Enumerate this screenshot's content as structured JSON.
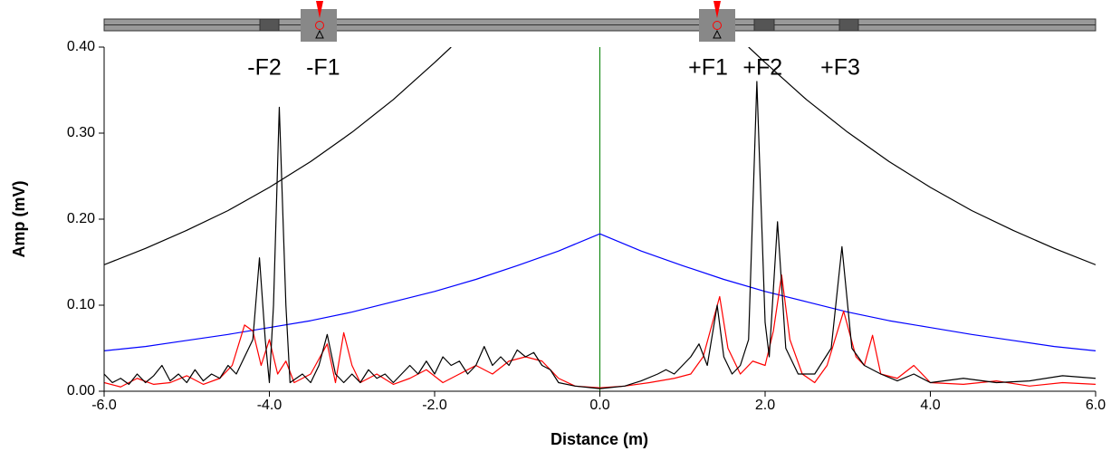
{
  "chart_data": {
    "type": "line",
    "xlabel": "Distance (m)",
    "ylabel": "Amp (mV)",
    "xlim": [
      -6,
      6
    ],
    "ylim": [
      0,
      0.4
    ],
    "xticks": [
      {
        "value": -6,
        "label": "-6.0"
      },
      {
        "value": -4,
        "label": "-4.0"
      },
      {
        "value": -2,
        "label": "-2.0"
      },
      {
        "value": 0,
        "label": "0.0"
      },
      {
        "value": 2,
        "label": "2.0"
      },
      {
        "value": 4,
        "label": "4.0"
      },
      {
        "value": 6,
        "label": "6.0"
      }
    ],
    "yticks": [
      {
        "value": 0,
        "label": "0.00"
      },
      {
        "value": 0.1,
        "label": "0.10"
      },
      {
        "value": 0.2,
        "label": "0.20"
      },
      {
        "value": 0.3,
        "label": "0.30"
      },
      {
        "value": 0.4,
        "label": "0.40"
      }
    ],
    "vlines": [
      {
        "x": 0,
        "color": "#008000"
      }
    ],
    "annotations": [
      {
        "text": "-F2",
        "x": -4.06,
        "y": 0.375
      },
      {
        "text": "-F1",
        "x": -3.35,
        "y": 0.375
      },
      {
        "text": "+F1",
        "x": 1.31,
        "y": 0.375
      },
      {
        "text": "+F2",
        "x": 1.97,
        "y": 0.375
      },
      {
        "text": "+F3",
        "x": 2.91,
        "y": 0.375
      }
    ],
    "series": [
      {
        "color": "#000000",
        "x": [
          -6,
          -5.5,
          -5,
          -4.5,
          -4,
          -3.5,
          -3,
          -2.5,
          -2,
          -1.8,
          0,
          1.8,
          2,
          2.5,
          3,
          3.5,
          4,
          4.5,
          5,
          5.5,
          6
        ],
        "values": [
          0.147,
          0.166,
          0.187,
          0.21,
          0.237,
          0.267,
          0.301,
          0.339,
          0.382,
          0.4,
          null,
          0.4,
          0.382,
          0.339,
          0.301,
          0.267,
          0.237,
          0.21,
          0.187,
          0.166,
          0.147
        ]
      },
      {
        "color": "#0000ff",
        "x": [
          -6,
          -5.5,
          -5,
          -4.5,
          -4,
          -3.5,
          -3,
          -2.5,
          -2,
          -1.5,
          -1,
          -0.5,
          0,
          0.5,
          1,
          1.5,
          2,
          2.5,
          3,
          3.5,
          4,
          4.5,
          5,
          5.5,
          6
        ],
        "values": [
          0.047,
          0.052,
          0.059,
          0.066,
          0.074,
          0.082,
          0.092,
          0.104,
          0.116,
          0.13,
          0.146,
          0.163,
          0.183,
          0.163,
          0.146,
          0.13,
          0.116,
          0.104,
          0.092,
          0.082,
          0.074,
          0.066,
          0.059,
          0.052,
          0.047
        ]
      },
      {
        "color": "#ff0000",
        "x": [
          -6.0,
          -5.8,
          -5.6,
          -5.4,
          -5.2,
          -5.0,
          -4.8,
          -4.6,
          -4.45,
          -4.3,
          -4.2,
          -4.1,
          -4.0,
          -3.9,
          -3.8,
          -3.7,
          -3.5,
          -3.3,
          -3.2,
          -3.1,
          -3.0,
          -2.9,
          -2.7,
          -2.5,
          -2.3,
          -2.1,
          -1.9,
          -1.7,
          -1.5,
          -1.3,
          -1.1,
          -0.9,
          -0.7,
          -0.5,
          -0.3,
          0,
          0.3,
          0.6,
          0.9,
          1.1,
          1.25,
          1.45,
          1.55,
          1.7,
          1.85,
          2.0,
          2.1,
          2.2,
          2.3,
          2.45,
          2.6,
          2.75,
          2.95,
          3.1,
          3.2,
          3.3,
          3.4,
          3.6,
          3.8,
          4.0,
          4.4,
          4.8,
          5.2,
          5.6,
          6.0
        ],
        "values": [
          0.01,
          0.005,
          0.015,
          0.008,
          0.01,
          0.018,
          0.008,
          0.015,
          0.03,
          0.077,
          0.07,
          0.03,
          0.06,
          0.02,
          0.035,
          0.01,
          0.02,
          0.055,
          0.01,
          0.068,
          0.03,
          0.01,
          0.02,
          0.008,
          0.015,
          0.025,
          0.01,
          0.02,
          0.03,
          0.02,
          0.035,
          0.04,
          0.035,
          0.015,
          0.006,
          0.004,
          0.006,
          0.01,
          0.015,
          0.02,
          0.04,
          0.11,
          0.05,
          0.02,
          0.035,
          0.03,
          0.07,
          0.135,
          0.06,
          0.02,
          0.01,
          0.03,
          0.093,
          0.04,
          0.03,
          0.065,
          0.02,
          0.015,
          0.03,
          0.01,
          0.008,
          0.012,
          0.006,
          0.01,
          0.008
        ]
      },
      {
        "color": "#000000",
        "x": [
          -6.0,
          -5.9,
          -5.8,
          -5.7,
          -5.6,
          -5.5,
          -5.4,
          -5.3,
          -5.2,
          -5.1,
          -5.0,
          -4.9,
          -4.8,
          -4.7,
          -4.6,
          -4.5,
          -4.4,
          -4.3,
          -4.2,
          -4.12,
          -4.05,
          -4.0,
          -3.95,
          -3.88,
          -3.8,
          -3.75,
          -3.6,
          -3.5,
          -3.4,
          -3.3,
          -3.2,
          -3.1,
          -3.0,
          -2.9,
          -2.8,
          -2.7,
          -2.6,
          -2.5,
          -2.4,
          -2.3,
          -2.2,
          -2.1,
          -2.0,
          -1.9,
          -1.8,
          -1.7,
          -1.6,
          -1.5,
          -1.4,
          -1.3,
          -1.2,
          -1.1,
          -1.0,
          -0.9,
          -0.8,
          -0.7,
          -0.6,
          -0.5,
          -0.3,
          0,
          0.3,
          0.5,
          0.7,
          0.8,
          0.9,
          1.0,
          1.1,
          1.2,
          1.3,
          1.42,
          1.5,
          1.6,
          1.7,
          1.8,
          1.9,
          2.0,
          2.05,
          2.15,
          2.25,
          2.4,
          2.6,
          2.8,
          2.93,
          3.05,
          3.2,
          3.4,
          3.6,
          3.8,
          4.0,
          4.4,
          4.8,
          5.2,
          5.6,
          6.0
        ],
        "values": [
          0.02,
          0.01,
          0.015,
          0.008,
          0.02,
          0.01,
          0.018,
          0.03,
          0.012,
          0.02,
          0.01,
          0.025,
          0.012,
          0.02,
          0.015,
          0.03,
          0.02,
          0.04,
          0.06,
          0.155,
          0.06,
          0.01,
          0.1,
          0.33,
          0.1,
          0.01,
          0.02,
          0.01,
          0.03,
          0.066,
          0.02,
          0.01,
          0.02,
          0.01,
          0.025,
          0.015,
          0.02,
          0.01,
          0.02,
          0.03,
          0.02,
          0.035,
          0.02,
          0.04,
          0.03,
          0.035,
          0.02,
          0.03,
          0.052,
          0.03,
          0.04,
          0.03,
          0.048,
          0.04,
          0.045,
          0.03,
          0.025,
          0.01,
          0.006,
          0.003,
          0.006,
          0.012,
          0.02,
          0.025,
          0.02,
          0.03,
          0.04,
          0.055,
          0.03,
          0.1,
          0.04,
          0.02,
          0.03,
          0.06,
          0.36,
          0.08,
          0.04,
          0.197,
          0.05,
          0.02,
          0.02,
          0.05,
          0.168,
          0.05,
          0.03,
          0.02,
          0.012,
          0.02,
          0.01,
          0.015,
          0.01,
          0.012,
          0.018,
          0.015
        ]
      }
    ]
  }
}
